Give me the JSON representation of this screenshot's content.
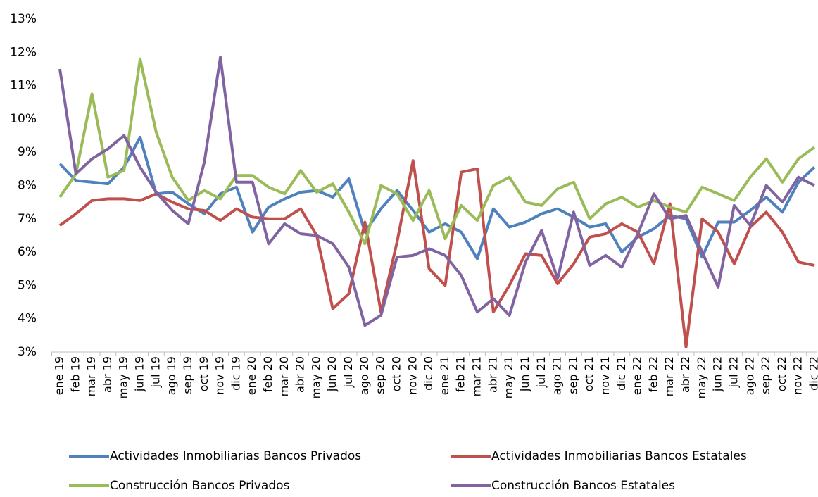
{
  "chart_data": {
    "type": "line",
    "categories": [
      "ene 19",
      "feb 19",
      "mar 19",
      "abr 19",
      "may 19",
      "jun 19",
      "jul 19",
      "ago 19",
      "sep 19",
      "oct 19",
      "nov 19",
      "dic 19",
      "ene 20",
      "feb 20",
      "mar 20",
      "abr 20",
      "may 20",
      "jun 20",
      "jul 20",
      "ago 20",
      "sep 20",
      "oct 20",
      "nov 20",
      "dic 20",
      "ene 21",
      "feb 21",
      "mar 21",
      "abr 21",
      "may 21",
      "jun 21",
      "jul 21",
      "ago 21",
      "sep 21",
      "oct 21",
      "nov 21",
      "dic 21",
      "ene 22",
      "feb 22",
      "mar 22",
      "abr 22",
      "may 22",
      "jun 22",
      "jul 22",
      "ago 22",
      "sep 22",
      "oct 22",
      "nov 22",
      "dic 22"
    ],
    "series": [
      {
        "name": "Actividades Inmobiliarias Bancos Privados",
        "color": "#4f81bd",
        "values": [
          8.65,
          8.15,
          8.1,
          8.05,
          8.55,
          9.45,
          7.75,
          7.8,
          7.45,
          7.15,
          7.75,
          7.95,
          6.6,
          7.35,
          7.6,
          7.8,
          7.85,
          7.65,
          8.2,
          6.6,
          7.3,
          7.85,
          7.25,
          6.6,
          6.85,
          6.6,
          5.8,
          7.3,
          6.75,
          6.9,
          7.15,
          7.3,
          7.05,
          6.75,
          6.85,
          6.0,
          6.45,
          6.7,
          7.1,
          7.0,
          5.85,
          6.9,
          6.9,
          7.25,
          7.65,
          7.2,
          8.1,
          8.55
        ]
      },
      {
        "name": "Actividades Inmobiliarias Bancos Estatales",
        "color": "#c0504d",
        "values": [
          6.8,
          7.15,
          7.55,
          7.6,
          7.6,
          7.55,
          7.75,
          7.5,
          7.3,
          7.25,
          6.95,
          7.3,
          7.05,
          7.0,
          7.0,
          7.3,
          6.5,
          4.3,
          4.75,
          6.9,
          4.2,
          6.3,
          8.75,
          5.5,
          5.0,
          8.4,
          8.5,
          4.2,
          5.0,
          5.95,
          5.9,
          5.05,
          5.65,
          6.45,
          6.55,
          6.85,
          6.6,
          5.65,
          7.45,
          3.15,
          7.0,
          6.6,
          5.65,
          6.75,
          7.2,
          6.6,
          5.7,
          5.6
        ]
      },
      {
        "name": "Construcción Bancos Privados",
        "color": "#9bbb59",
        "values": [
          7.65,
          8.35,
          10.75,
          8.25,
          8.45,
          11.8,
          9.6,
          8.25,
          7.55,
          7.85,
          7.6,
          8.3,
          8.3,
          7.95,
          7.75,
          8.45,
          7.8,
          8.05,
          7.2,
          6.25,
          8.0,
          7.75,
          6.95,
          7.85,
          6.4,
          7.4,
          6.95,
          8.0,
          8.25,
          7.5,
          7.4,
          7.9,
          8.1,
          7.0,
          7.45,
          7.65,
          7.35,
          7.55,
          7.35,
          7.2,
          7.95,
          7.75,
          7.55,
          8.25,
          8.8,
          8.1,
          8.8,
          9.15
        ]
      },
      {
        "name": "Construcción Bancos Estatales",
        "color": "#8064a2",
        "values": [
          11.5,
          8.35,
          8.8,
          9.1,
          9.5,
          8.55,
          7.8,
          7.25,
          6.85,
          8.7,
          11.85,
          8.1,
          8.1,
          6.25,
          6.85,
          6.55,
          6.5,
          6.25,
          5.55,
          3.8,
          4.1,
          5.85,
          5.9,
          6.1,
          5.9,
          5.3,
          4.2,
          4.6,
          4.1,
          5.7,
          6.65,
          5.2,
          7.2,
          5.6,
          5.9,
          5.55,
          6.55,
          7.75,
          7.0,
          7.1,
          6.0,
          4.95,
          7.4,
          6.8,
          8.0,
          7.5,
          8.25,
          8.0
        ]
      }
    ],
    "ylim": [
      3,
      13
    ],
    "yticks": [
      {
        "value": 3,
        "label": "3%"
      },
      {
        "value": 4,
        "label": "4%"
      },
      {
        "value": 5,
        "label": "5%"
      },
      {
        "value": 6,
        "label": "6%"
      },
      {
        "value": 7,
        "label": "7%"
      },
      {
        "value": 8,
        "label": "8%"
      },
      {
        "value": 9,
        "label": "9%"
      },
      {
        "value": 10,
        "label": "10%"
      },
      {
        "value": 11,
        "label": "11%"
      },
      {
        "value": 12,
        "label": "12%"
      },
      {
        "value": 13,
        "label": "13%"
      }
    ],
    "grid": false
  }
}
